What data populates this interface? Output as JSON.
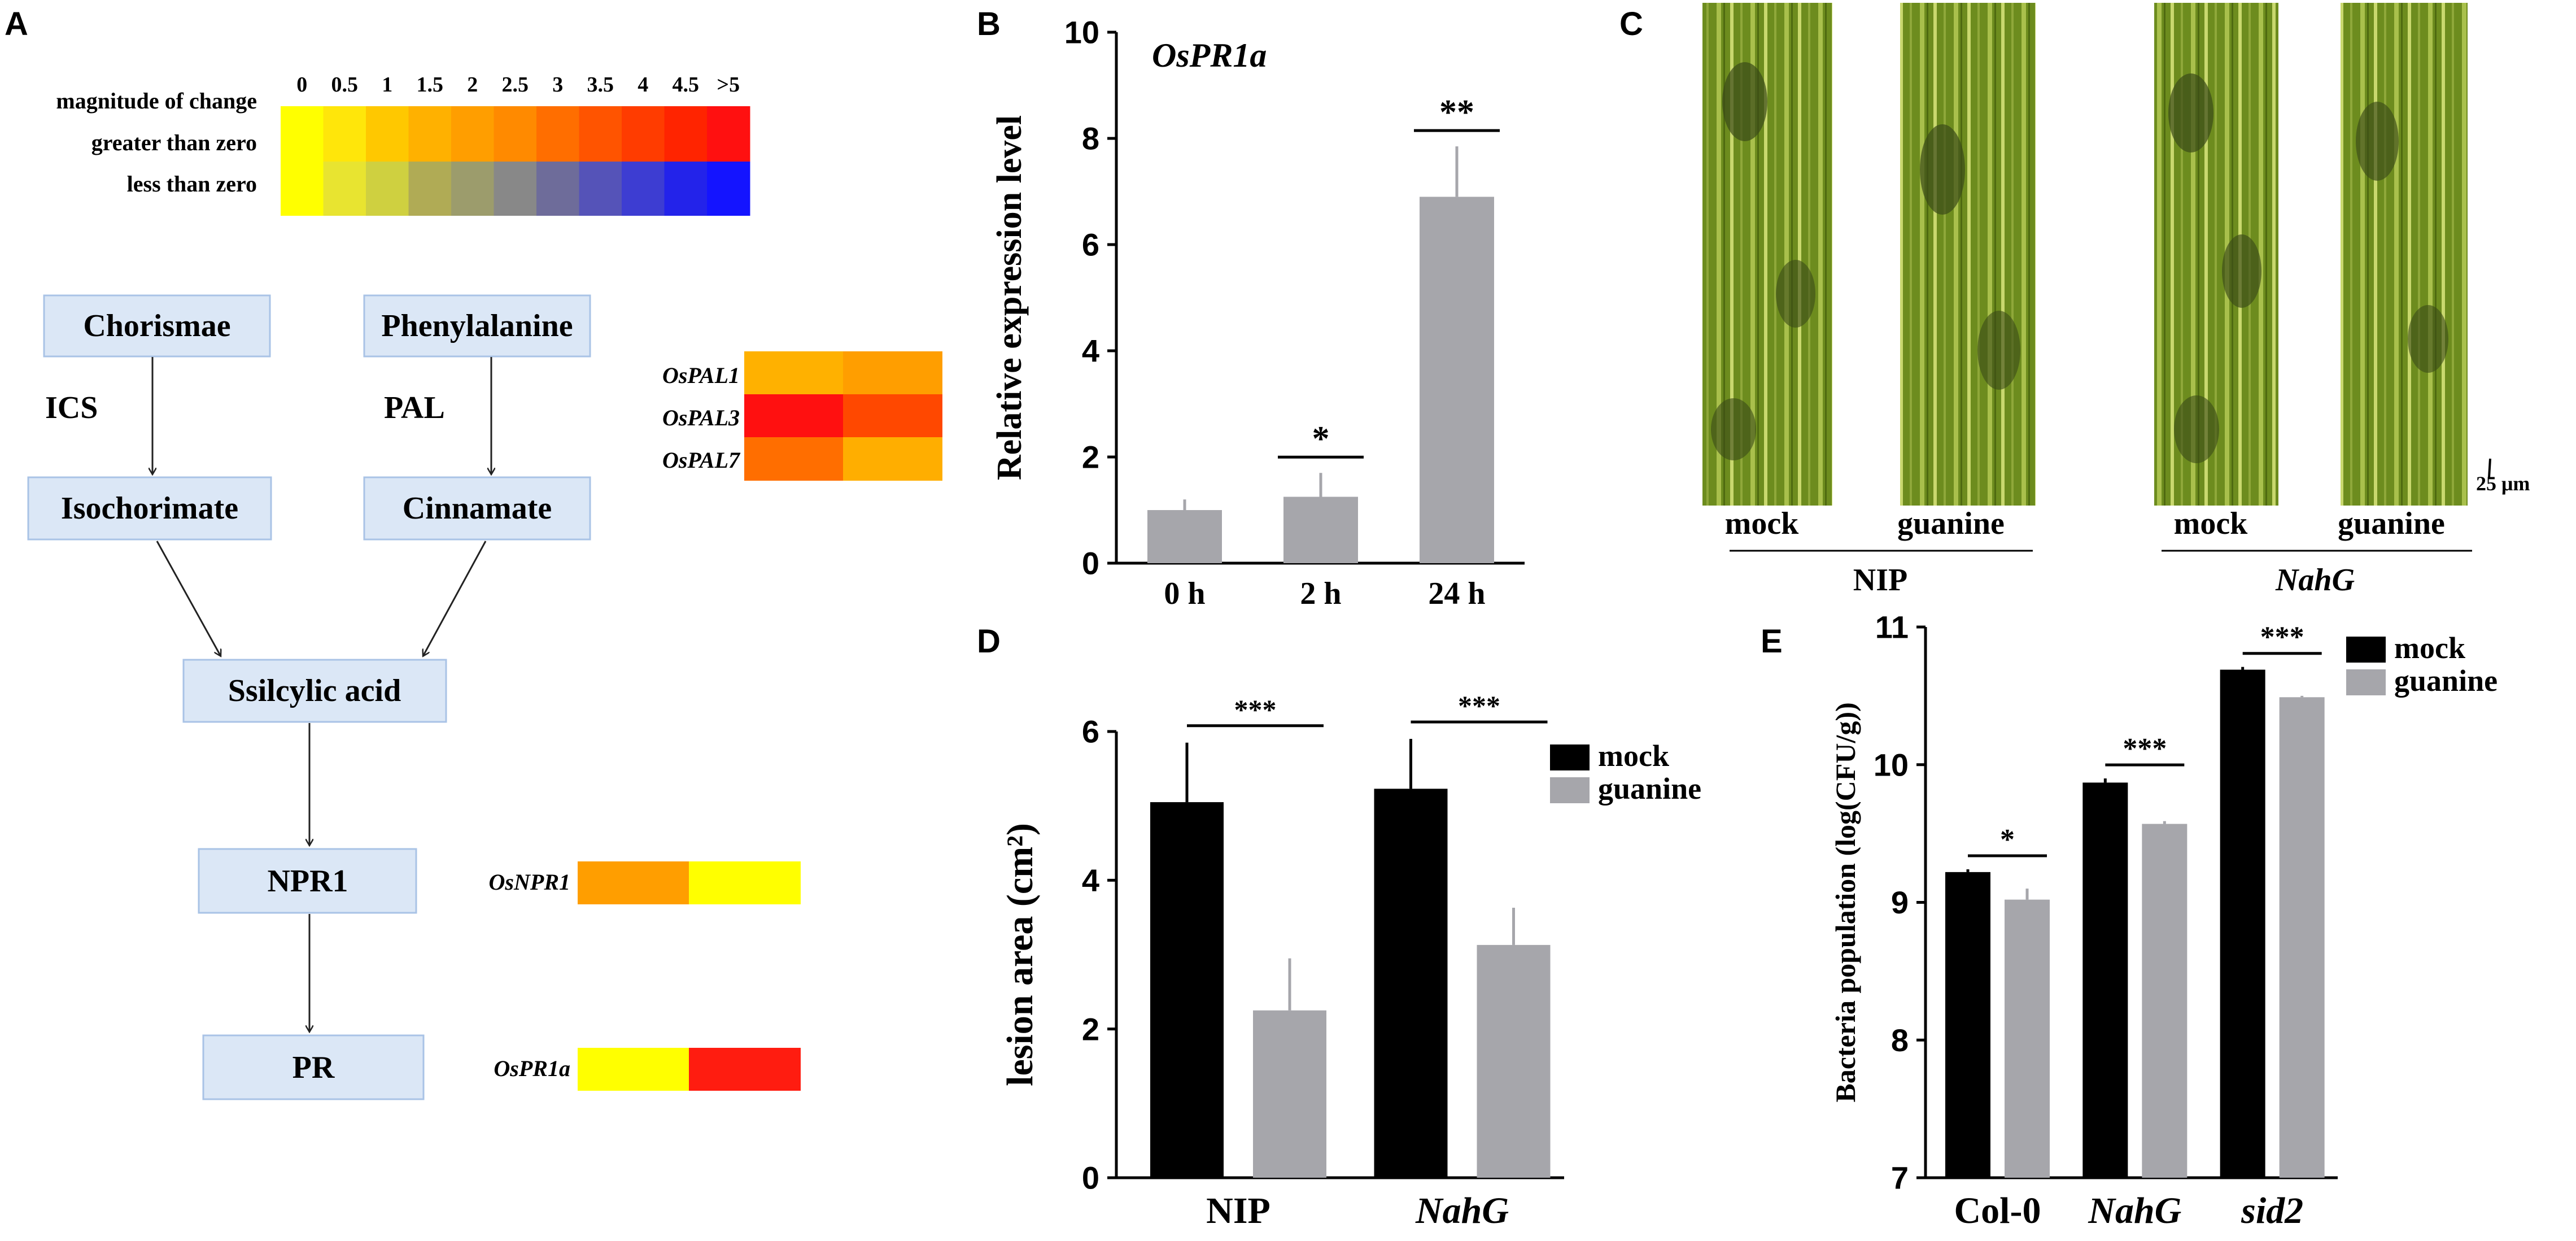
{
  "panel_labels": {
    "a": "A",
    "b": "B",
    "c": "C",
    "d": "D",
    "e": "E"
  },
  "scale": {
    "row_labels": [
      "magnitude of change",
      "greater than zero",
      "less than zero"
    ],
    "ticks": [
      "0",
      "0.5",
      "1",
      "1.5",
      "2",
      "2.5",
      "3",
      "3.5",
      "4",
      "4.5",
      ">5"
    ],
    "pos_colors": [
      "#ffff00",
      "#ffe60a",
      "#ffc800",
      "#ffb100",
      "#ff9e00",
      "#ff8a00",
      "#ff6e00",
      "#ff5400",
      "#ff3c00",
      "#ff2400",
      "#ff1010"
    ],
    "neg_colors": [
      "#ffff00",
      "#e8e430",
      "#cfd040",
      "#b0ab55",
      "#9c9c6c",
      "#888888",
      "#6e6c9a",
      "#5553b8",
      "#3d3dd2",
      "#2323ea",
      "#1414ff"
    ]
  },
  "pathway": {
    "nodes": {
      "chorismae": "Chorismae",
      "phenylalanine": "Phenylalanine",
      "isochorimate": "Isochorimate",
      "cinnamate": "Cinnamate",
      "salicylic": "Ssilcylic acid",
      "npr1": "NPR1",
      "pr": "PR"
    },
    "enzymes": {
      "ics": "ICS",
      "pal": "PAL"
    }
  },
  "heatmaps": {
    "pal": {
      "genes": [
        "OsPAL1",
        "OsPAL3",
        "OsPAL7"
      ],
      "colors": [
        [
          "#ffb100",
          "#ff9e00"
        ],
        [
          "#ff1010",
          "#ff4800"
        ],
        [
          "#ff6e00",
          "#ffae00"
        ]
      ]
    },
    "npr1": {
      "gene": "OsNPR1",
      "colors": [
        "#ff9e00",
        "#ffff00"
      ]
    },
    "pr1a": {
      "gene": "OsPR1a",
      "colors": [
        "#ffff00",
        "#ff1c10"
      ]
    }
  },
  "photo_panel": {
    "scale_bar": "25 μm",
    "images": [
      {
        "label": "mock",
        "group": "NIP"
      },
      {
        "label": "guanine",
        "group": "NIP"
      },
      {
        "label": "mock",
        "group": "NahG"
      },
      {
        "label": "guanine",
        "group": "NahG"
      }
    ],
    "groups": [
      "NIP",
      "NahG"
    ]
  },
  "chart_data": [
    {
      "id": "B",
      "type": "bar",
      "title": "OsPR1a",
      "xlabel": "",
      "ylabel": "Relative expression level",
      "categories": [
        "0 h",
        "2 h",
        "24 h"
      ],
      "values": [
        1.0,
        1.25,
        6.9
      ],
      "errors": [
        0.2,
        0.45,
        0.95
      ],
      "significance": [
        "",
        "*",
        "**"
      ],
      "ylim": [
        0,
        10
      ],
      "yticks": [
        0,
        2,
        4,
        6,
        8,
        10
      ],
      "colors": [
        "#a6a6ab"
      ]
    },
    {
      "id": "D",
      "type": "bar",
      "title": "",
      "xlabel": "",
      "ylabel": "lesion area (cm²)",
      "categories": [
        "NIP",
        "NahG"
      ],
      "series": [
        {
          "name": "mock",
          "values": [
            5.05,
            5.23
          ],
          "errors": [
            0.8,
            0.67
          ],
          "color": "#000000"
        },
        {
          "name": "guanine",
          "values": [
            2.25,
            3.13
          ],
          "errors": [
            0.7,
            0.5
          ],
          "color": "#a6a6ab"
        }
      ],
      "significance": [
        "***",
        "***"
      ],
      "ylim": [
        0,
        6
      ],
      "yticks": [
        0,
        2,
        4,
        6
      ],
      "legend": "top-right"
    },
    {
      "id": "E",
      "type": "bar",
      "title": "",
      "xlabel": "",
      "ylabel": "Bacteria population (log(CFU/g))",
      "categories": [
        "Col-0",
        "NahG",
        "sid2"
      ],
      "series": [
        {
          "name": "mock",
          "values": [
            9.22,
            9.87,
            10.69
          ],
          "errors": [
            0.02,
            0.03,
            0.02
          ],
          "color": "#000000"
        },
        {
          "name": "guanine",
          "values": [
            9.02,
            9.57,
            10.49
          ],
          "errors": [
            0.08,
            0.02,
            0.01
          ],
          "color": "#a6a6ab"
        }
      ],
      "significance": [
        "*",
        "***",
        "***"
      ],
      "ylim": [
        7,
        11
      ],
      "yticks": [
        7,
        8,
        9,
        10,
        11
      ],
      "legend": "top-right"
    }
  ]
}
